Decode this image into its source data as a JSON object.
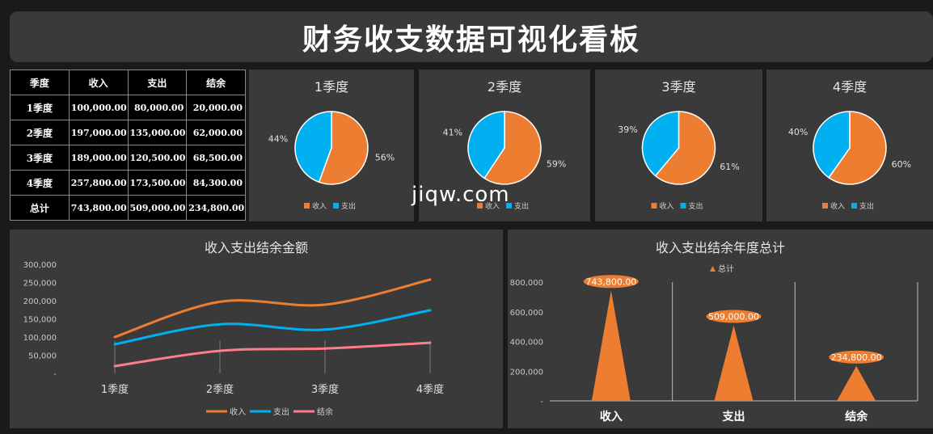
{
  "title": "财务收支数据可视化看板",
  "watermark": "jiqw.com",
  "colors": {
    "income": "#ed7d31",
    "expense": "#00b0f0",
    "balance": "#ff7c8a"
  },
  "table": {
    "headers": [
      "季度",
      "收入",
      "支出",
      "结余"
    ],
    "rows": [
      [
        "1季度",
        "100,000.00",
        "80,000.00",
        "20,000.00"
      ],
      [
        "2季度",
        "197,000.00",
        "135,000.00",
        "62,000.00"
      ],
      [
        "3季度",
        "189,000.00",
        "120,500.00",
        "68,500.00"
      ],
      [
        "4季度",
        "257,800.00",
        "173,500.00",
        "84,300.00"
      ],
      [
        "总计",
        "743,800.00",
        "509,000.00",
        "234,800.00"
      ]
    ]
  },
  "pie_legend": [
    "收入",
    "支出"
  ],
  "chart_data": [
    {
      "type": "pie",
      "title": "1季度",
      "labels": [
        "收入",
        "支出"
      ],
      "values": [
        100000,
        80000
      ],
      "percent_labels": [
        "56%",
        "44%"
      ]
    },
    {
      "type": "pie",
      "title": "2季度",
      "labels": [
        "收入",
        "支出"
      ],
      "values": [
        197000,
        135000
      ],
      "percent_labels": [
        "59%",
        "41%"
      ]
    },
    {
      "type": "pie",
      "title": "3季度",
      "labels": [
        "收入",
        "支出"
      ],
      "values": [
        189000,
        120500
      ],
      "percent_labels": [
        "61%",
        "39%"
      ]
    },
    {
      "type": "pie",
      "title": "4季度",
      "labels": [
        "收入",
        "支出"
      ],
      "values": [
        257800,
        173500
      ],
      "percent_labels": [
        "60%",
        "40%"
      ]
    },
    {
      "type": "line",
      "title": "收入支出结余金额",
      "categories": [
        "1季度",
        "2季度",
        "3季度",
        "4季度"
      ],
      "series": [
        {
          "name": "收入",
          "values": [
            100000,
            197000,
            189000,
            257800
          ]
        },
        {
          "name": "支出",
          "values": [
            80000,
            135000,
            120500,
            173500
          ]
        },
        {
          "name": "结余",
          "values": [
            20000,
            62000,
            68500,
            84300
          ]
        }
      ],
      "yticks": [
        "-",
        "50,000",
        "100,000",
        "150,000",
        "200,000",
        "250,000",
        "300,000"
      ],
      "ylim": [
        0,
        300000
      ],
      "legend_position": "bottom"
    },
    {
      "type": "bar",
      "title": "收入支出结余年度总计",
      "categories": [
        "收入",
        "支出",
        "结余"
      ],
      "series": [
        {
          "name": "总计",
          "values": [
            743800,
            509000,
            234800
          ]
        }
      ],
      "data_labels": [
        "743,800.00",
        "509,000.00",
        "234,800.00"
      ],
      "yticks": [
        "-",
        "200,000",
        "400,000",
        "600,000",
        "800,000"
      ],
      "ylim": [
        0,
        800000
      ],
      "legend_position": "top",
      "mark_shape": "triangle"
    }
  ]
}
